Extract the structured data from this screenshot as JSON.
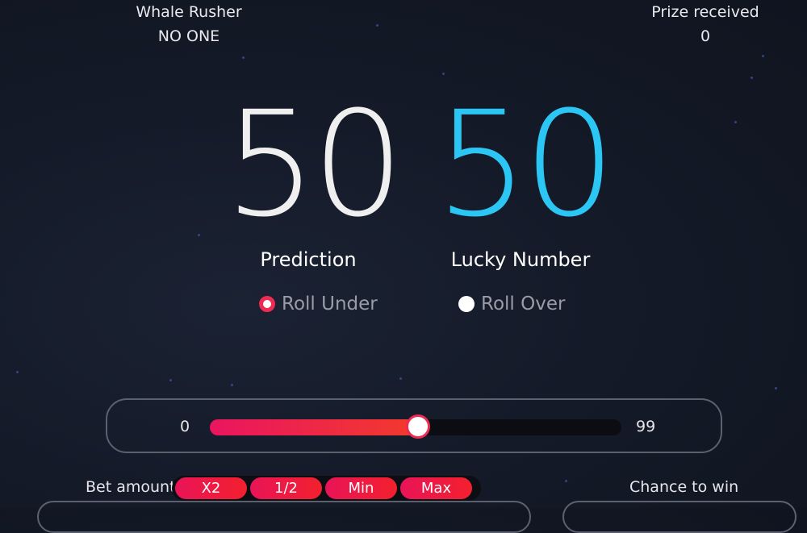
{
  "header": {
    "whale_title": "Whale Rusher",
    "whale_value": "NO ONE",
    "prize_title": "Prize received",
    "prize_value": "0"
  },
  "numbers": {
    "prediction": "50",
    "lucky_number": "50",
    "prediction_label": "Prediction",
    "lucky_label": "Lucky Number",
    "prediction_color": "#efefef",
    "lucky_color": "#2cc6f5"
  },
  "roll_mode": {
    "options": [
      "Roll Under",
      "Roll Over"
    ],
    "selected": "Roll Under"
  },
  "slider": {
    "min_label": "0",
    "max_label": "99",
    "min": 0,
    "max": 99,
    "value": 50,
    "accent": "#ee2b52"
  },
  "bet": {
    "label": "Bet amount",
    "buttons": [
      "X2",
      "1/2",
      "Min",
      "Max"
    ]
  },
  "chance": {
    "label": "Chance to win"
  }
}
